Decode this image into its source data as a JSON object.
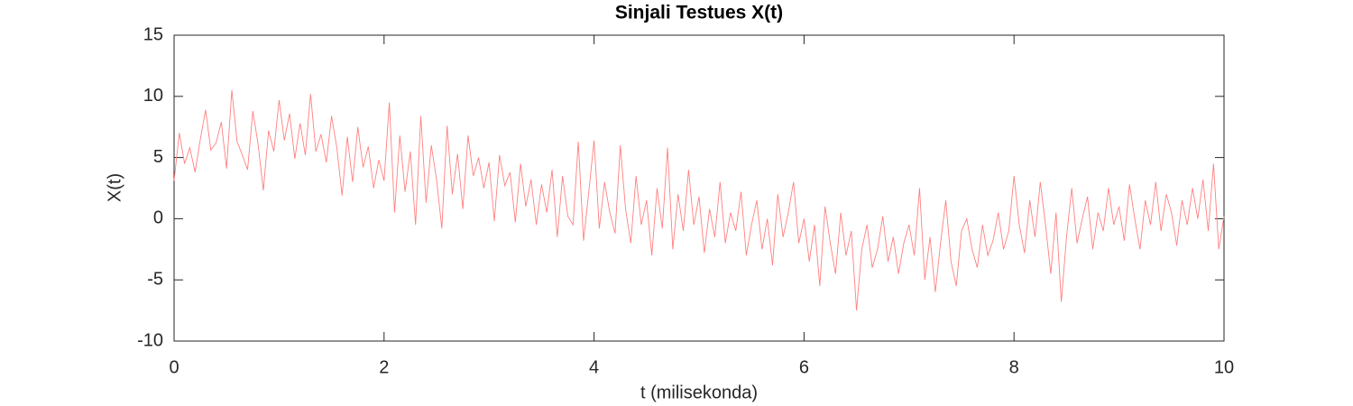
{
  "chart_data": {
    "type": "line",
    "title": "Sinjali Testues X(t)",
    "xlabel": "t (milisekonda)",
    "ylabel": "X(t)",
    "x": [
      0,
      0.05,
      0.1,
      0.15,
      0.2,
      0.25,
      0.3,
      0.35,
      0.4,
      0.45,
      0.5,
      0.55,
      0.6,
      0.65,
      0.7,
      0.75,
      0.8,
      0.85,
      0.9,
      0.95,
      1,
      1.05,
      1.1,
      1.15,
      1.2,
      1.25,
      1.3,
      1.35,
      1.4,
      1.45,
      1.5,
      1.55,
      1.6,
      1.65,
      1.7,
      1.75,
      1.8,
      1.85,
      1.9,
      1.95,
      2,
      2.05,
      2.1,
      2.15,
      2.2,
      2.25,
      2.3,
      2.35,
      2.4,
      2.45,
      2.5,
      2.55,
      2.6,
      2.65,
      2.7,
      2.75,
      2.8,
      2.85,
      2.9,
      2.95,
      3,
      3.05,
      3.1,
      3.15,
      3.2,
      3.25,
      3.3,
      3.35,
      3.4,
      3.45,
      3.5,
      3.55,
      3.6,
      3.65,
      3.7,
      3.75,
      3.8,
      3.85,
      3.9,
      3.95,
      4,
      4.05,
      4.1,
      4.15,
      4.2,
      4.25,
      4.3,
      4.35,
      4.4,
      4.45,
      4.5,
      4.55,
      4.6,
      4.65,
      4.7,
      4.75,
      4.8,
      4.85,
      4.9,
      4.95,
      5,
      5.05,
      5.1,
      5.15,
      5.2,
      5.25,
      5.3,
      5.35,
      5.4,
      5.45,
      5.5,
      5.55,
      5.6,
      5.65,
      5.7,
      5.75,
      5.8,
      5.85,
      5.9,
      5.95,
      6,
      6.05,
      6.1,
      6.15,
      6.2,
      6.25,
      6.3,
      6.35,
      6.4,
      6.45,
      6.5,
      6.55,
      6.6,
      6.65,
      6.7,
      6.75,
      6.8,
      6.85,
      6.9,
      6.95,
      7,
      7.05,
      7.1,
      7.15,
      7.2,
      7.25,
      7.3,
      7.35,
      7.4,
      7.45,
      7.5,
      7.55,
      7.6,
      7.65,
      7.7,
      7.75,
      7.8,
      7.85,
      7.9,
      7.95,
      8,
      8.05,
      8.1,
      8.15,
      8.2,
      8.25,
      8.3,
      8.35,
      8.4,
      8.45,
      8.5,
      8.55,
      8.6,
      8.65,
      8.7,
      8.75,
      8.8,
      8.85,
      8.9,
      8.95,
      9,
      9.05,
      9.1,
      9.15,
      9.2,
      9.25,
      9.3,
      9.35,
      9.4,
      9.45,
      9.5,
      9.55,
      9.6,
      9.65,
      9.7,
      9.75,
      9.8,
      9.85,
      9.9,
      9.95,
      10
    ],
    "values": [
      3.1,
      7.0,
      4.5,
      5.8,
      3.8,
      6.5,
      8.9,
      5.6,
      6.2,
      7.9,
      4.1,
      10.5,
      6.3,
      5.2,
      4.0,
      8.8,
      6.1,
      2.3,
      7.2,
      5.5,
      9.7,
      6.4,
      8.6,
      4.9,
      7.8,
      5.2,
      10.2,
      5.5,
      6.9,
      4.6,
      8.4,
      5.8,
      1.9,
      6.7,
      3.0,
      7.5,
      4.2,
      5.9,
      2.5,
      4.8,
      3.1,
      9.5,
      0.5,
      6.8,
      2.2,
      5.5,
      -0.5,
      8.4,
      1.3,
      6.0,
      3.2,
      -0.8,
      7.6,
      2.0,
      5.3,
      0.8,
      6.8,
      3.5,
      5.0,
      2.5,
      4.6,
      -0.2,
      5.2,
      2.7,
      3.8,
      -0.3,
      4.5,
      1.0,
      3.2,
      -0.5,
      2.8,
      0.5,
      4.0,
      -1.5,
      3.5,
      0.2,
      -0.5,
      6.3,
      -1.8,
      2.2,
      6.4,
      -0.8,
      3.0,
      0.5,
      -1.2,
      6.0,
      0.8,
      -2.0,
      3.5,
      -0.5,
      1.5,
      -3.0,
      2.5,
      -0.8,
      5.8,
      -2.5,
      2.0,
      -1.0,
      4.0,
      -0.5,
      1.8,
      -2.8,
      0.8,
      -1.5,
      3.0,
      -2.0,
      0.5,
      -1.0,
      2.2,
      -3.0,
      -0.5,
      1.5,
      -2.5,
      0.0,
      -3.8,
      2.0,
      -1.5,
      0.5,
      3.0,
      -2.0,
      0.0,
      -3.5,
      -0.5,
      -5.5,
      1.0,
      -2.0,
      -4.5,
      0.5,
      -3.0,
      -1.0,
      -7.5,
      -2.5,
      -0.5,
      -4.0,
      -2.5,
      0.2,
      -3.5,
      -1.5,
      -4.5,
      -2.0,
      -0.5,
      -3.0,
      2.5,
      -5.0,
      -1.5,
      -6.0,
      -2.0,
      1.5,
      -3.5,
      -5.5,
      -1.0,
      0.0,
      -2.5,
      -4.0,
      -0.5,
      -3.0,
      -1.8,
      0.5,
      -2.5,
      -1.0,
      3.5,
      -0.5,
      -2.8,
      1.5,
      -1.5,
      3.0,
      -0.5,
      -4.5,
      0.5,
      -6.8,
      -1.5,
      2.5,
      -2.0,
      0.0,
      1.8,
      -2.5,
      0.5,
      -1.0,
      2.5,
      -0.5,
      1.0,
      -1.8,
      2.8,
      0.0,
      -2.5,
      1.5,
      -0.5,
      3.0,
      -1.0,
      2.0,
      0.5,
      -2.2,
      1.5,
      -0.5,
      2.5,
      0.0,
      3.2,
      -1.0,
      4.5,
      -2.5,
      0.2
    ],
    "color": "#ff8080",
    "xlim": [
      0,
      10
    ],
    "xticks": [
      0,
      2,
      4,
      6,
      8,
      10
    ],
    "ylim": [
      -10,
      15
    ],
    "yticks": [
      -10,
      -5,
      0,
      5,
      10,
      15
    ],
    "grid": false
  }
}
